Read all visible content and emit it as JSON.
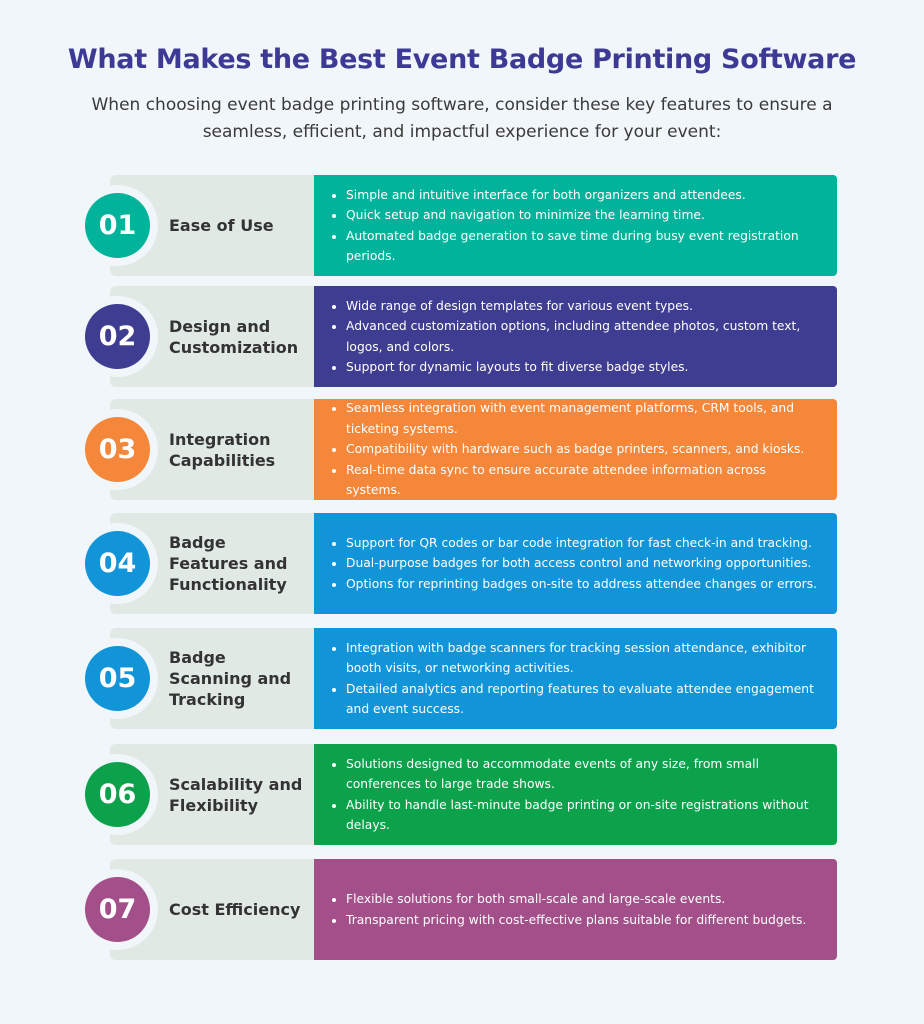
{
  "title": "What Makes the Best Event Badge Printing Software",
  "subtitle": "When choosing event badge printing software, consider these key features to ensure a seamless, efficient, and impactful experience for your event:",
  "features": [
    {
      "number": "01",
      "heading": "Ease of Use",
      "color": "#00b39a",
      "points": [
        "Simple and intuitive interface for both organizers and attendees.",
        "Quick setup and navigation to minimize the learning time.",
        "Automated badge generation to save time during busy event registration periods."
      ]
    },
    {
      "number": "02",
      "heading": "Design and Customization",
      "color": "#3f3d91",
      "points": [
        "Wide range of design templates for various event types.",
        "Advanced customization options, including attendee photos, custom text, logos, and colors.",
        "Support for dynamic layouts to fit diverse badge styles."
      ]
    },
    {
      "number": "03",
      "heading": "Integration Capabilities",
      "color": "#f5873a",
      "points": [
        "Seamless integration with event management platforms, CRM tools, and ticketing systems.",
        "Compatibility with hardware such as badge printers, scanners, and kiosks.",
        "Real-time data sync to ensure accurate attendee information across systems."
      ]
    },
    {
      "number": "04",
      "heading": "Badge Features and Functionality",
      "color": "#1295d8",
      "points": [
        "Support for QR codes or bar code integration for fast check-in and tracking.",
        "Dual-purpose badges for both access control and networking opportunities.",
        "Options for reprinting badges on-site to address attendee changes or errors."
      ]
    },
    {
      "number": "05",
      "heading": "Badge Scanning and Tracking",
      "color": "#1295d8",
      "points": [
        "Integration with badge scanners for tracking session attendance, exhibitor booth visits, or networking activities.",
        "Detailed analytics and reporting features to evaluate attendee engagement and event success."
      ]
    },
    {
      "number": "06",
      "heading": "Scalability and Flexibility",
      "color": "#0ca24c",
      "points": [
        "Solutions designed to accommodate events of any size, from small conferences to large trade shows.",
        "Ability to handle last-minute badge printing or on-site registrations without delays."
      ]
    },
    {
      "number": "07",
      "heading": "Cost Efficiency",
      "color": "#a34f8a",
      "points": [
        "Flexible solutions for both small-scale and large-scale events.",
        "Transparent pricing with cost-effective plans suitable for different budgets."
      ]
    }
  ]
}
